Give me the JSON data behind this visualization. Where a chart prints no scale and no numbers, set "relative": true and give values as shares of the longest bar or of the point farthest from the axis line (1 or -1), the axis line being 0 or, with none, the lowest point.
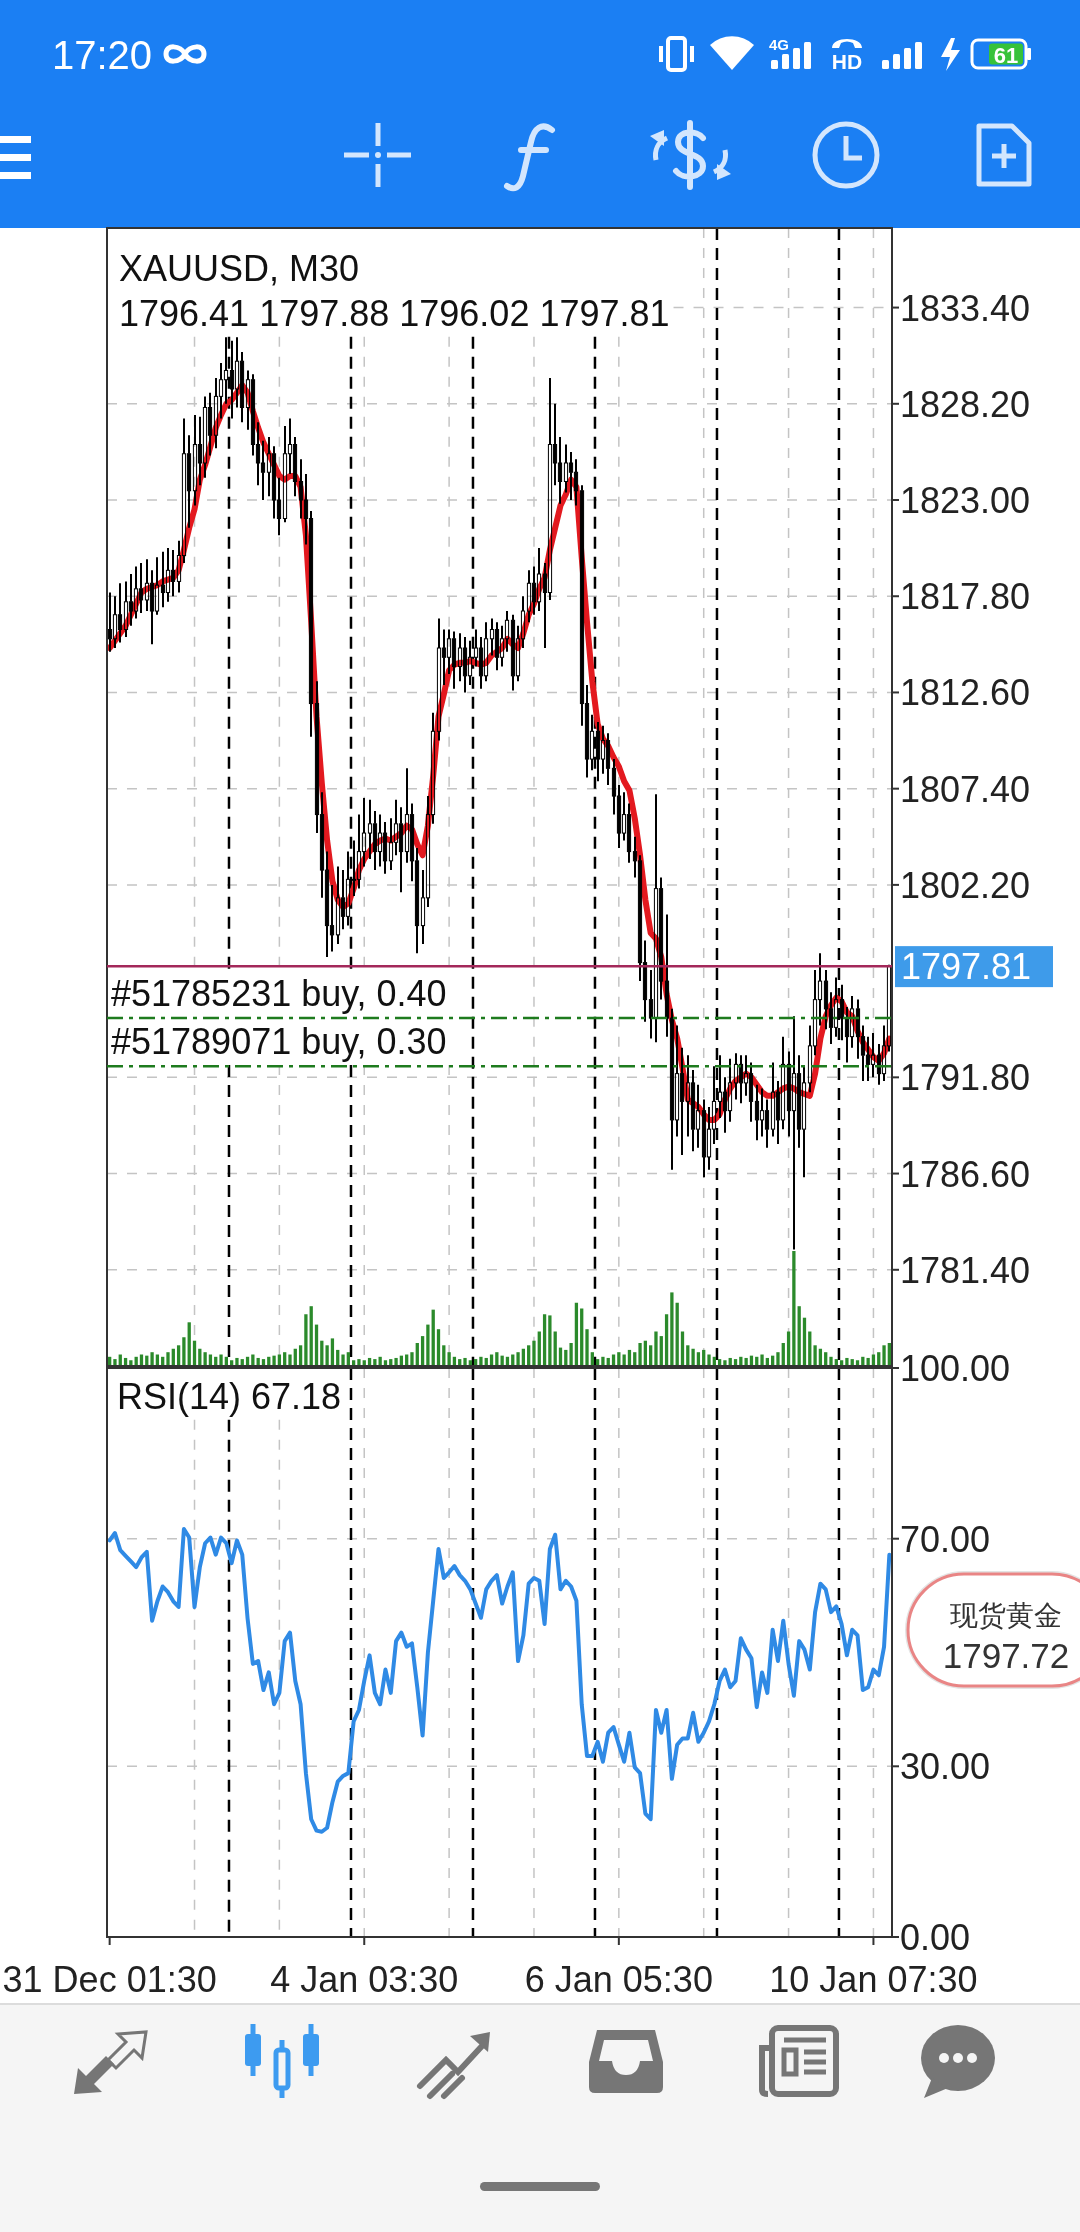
{
  "chart_data": [
    {
      "type": "candlestick",
      "title": "XAUUSD, M30",
      "subtitle": "1796.41 1797.88 1796.02 1797.81",
      "annotations": [
        "17:20",
        "4G",
        "HD",
        "61"
      ],
      "categories": [
        null,
        null,
        null,
        null,
        null,
        null,
        null,
        null,
        null,
        null,
        null,
        null,
        null,
        null,
        null,
        null,
        null,
        null,
        null,
        null,
        null,
        null,
        null,
        null,
        null,
        null,
        null,
        null,
        null,
        null,
        null,
        null,
        null,
        null,
        null,
        null,
        null,
        null,
        null,
        null,
        null,
        null,
        null,
        null,
        null,
        null,
        null,
        null,
        null,
        null,
        null,
        null,
        null,
        null,
        null,
        null,
        null,
        null,
        null,
        null,
        null,
        null,
        null,
        null,
        null,
        null,
        null,
        null,
        null,
        null,
        null,
        null,
        null,
        null,
        null,
        null,
        null,
        null,
        null,
        null,
        null,
        null,
        null,
        null,
        null,
        null,
        null,
        null,
        null,
        null,
        null,
        null,
        null,
        null,
        null,
        null,
        null,
        null,
        null,
        null,
        null,
        null,
        null,
        null,
        null,
        null,
        null,
        null,
        null,
        null,
        null,
        null,
        null,
        null,
        null,
        null,
        null,
        null,
        null,
        null,
        null,
        null,
        null,
        null,
        null,
        null,
        null,
        null,
        null,
        null,
        null,
        null,
        null,
        null,
        null,
        null,
        null,
        null,
        null,
        null,
        null,
        null,
        null,
        null,
        null,
        null,
        null,
        null
      ],
      "ohlc": [
        [
          1816.0,
          1818.0,
          1814.8,
          1815.5
        ],
        [
          1815.5,
          1817.8,
          1815.0,
          1816.8
        ],
        [
          1816.8,
          1818.5,
          1815.3,
          1816.0
        ],
        [
          1816.0,
          1818.6,
          1815.6,
          1817.5
        ],
        [
          1817.5,
          1819.0,
          1816.2,
          1817.0
        ],
        [
          1817.0,
          1819.4,
          1816.6,
          1818.2
        ],
        [
          1818.2,
          1819.6,
          1816.9,
          1817.6
        ],
        [
          1817.6,
          1819.8,
          1817.0,
          1818.5
        ],
        [
          1818.5,
          1819.2,
          1815.2,
          1817.0
        ],
        [
          1817.0,
          1819.9,
          1816.8,
          1818.4
        ],
        [
          1818.4,
          1820.2,
          1817.2,
          1818.0
        ],
        [
          1818.0,
          1820.4,
          1817.5,
          1819.2
        ],
        [
          1819.2,
          1820.3,
          1817.8,
          1818.6
        ],
        [
          1818.6,
          1820.8,
          1818.0,
          1820.0
        ],
        [
          1820.0,
          1827.4,
          1819.6,
          1825.5
        ],
        [
          1825.5,
          1826.5,
          1821.5,
          1823.5
        ],
        [
          1823.5,
          1827.6,
          1822.7,
          1826.0
        ],
        [
          1826.0,
          1827.5,
          1823.8,
          1825.0
        ],
        [
          1825.0,
          1828.6,
          1824.2,
          1828.0
        ],
        [
          1828.0,
          1828.8,
          1825.4,
          1826.5
        ],
        [
          1826.5,
          1829.6,
          1825.8,
          1828.6
        ],
        [
          1828.6,
          1830.4,
          1827.4,
          1829.5
        ],
        [
          1829.5,
          1831.8,
          1828.2,
          1830.0
        ],
        [
          1830.0,
          1831.6,
          1827.4,
          1829.0
        ],
        [
          1829.0,
          1831.8,
          1828.0,
          1830.5
        ],
        [
          1830.5,
          1831.0,
          1827.2,
          1828.0
        ],
        [
          1828.0,
          1830.0,
          1826.8,
          1829.5
        ],
        [
          1829.5,
          1829.8,
          1825.4,
          1826.0
        ],
        [
          1826.0,
          1827.2,
          1823.8,
          1825.0
        ],
        [
          1825.0,
          1826.2,
          1823.0,
          1824.5
        ],
        [
          1824.5,
          1826.4,
          1823.2,
          1825.5
        ],
        [
          1825.5,
          1825.9,
          1822.0,
          1823.0
        ],
        [
          1823.0,
          1824.2,
          1821.1,
          1822.0
        ],
        [
          1822.0,
          1827.0,
          1821.8,
          1825.5
        ],
        [
          1825.5,
          1827.4,
          1824.4,
          1826.0
        ],
        [
          1826.0,
          1826.4,
          1823.2,
          1824.0
        ],
        [
          1824.0,
          1825.2,
          1822.0,
          1823.0
        ],
        [
          1823.0,
          1824.4,
          1820.6,
          1822.0
        ],
        [
          1822.0,
          1822.4,
          1810.2,
          1812.0
        ],
        [
          1812.0,
          1813.2,
          1805.0,
          1806.0
        ],
        [
          1806.0,
          1807.2,
          1801.5,
          1803.0
        ],
        [
          1803.0,
          1804.0,
          1798.3,
          1800.0
        ],
        [
          1800.0,
          1802.2,
          1798.6,
          1799.5
        ],
        [
          1799.5,
          1803.2,
          1799.0,
          1801.5
        ],
        [
          1801.5,
          1803.0,
          1799.8,
          1800.5
        ],
        [
          1800.5,
          1804.0,
          1800.0,
          1802.5
        ],
        [
          1802.5,
          1804.6,
          1801.6,
          1802.5
        ],
        [
          1802.5,
          1806.0,
          1802.0,
          1804.0
        ],
        [
          1804.0,
          1806.9,
          1803.2,
          1805.0
        ],
        [
          1805.0,
          1806.8,
          1803.6,
          1805.5
        ],
        [
          1805.5,
          1806.2,
          1803.0,
          1804.0
        ],
        [
          1804.0,
          1806.0,
          1803.2,
          1805.0
        ],
        [
          1805.0,
          1805.6,
          1802.8,
          1803.5
        ],
        [
          1803.5,
          1805.8,
          1803.0,
          1804.5
        ],
        [
          1804.5,
          1806.8,
          1803.8,
          1805.5
        ],
        [
          1805.5,
          1806.4,
          1801.8,
          1804.0
        ],
        [
          1804.0,
          1808.5,
          1803.4,
          1806.0
        ],
        [
          1806.0,
          1806.6,
          1802.4,
          1803.5
        ],
        [
          1803.5,
          1804.2,
          1798.5,
          1800.0
        ],
        [
          1800.0,
          1803.0,
          1799.0,
          1801.5
        ],
        [
          1801.5,
          1807.0,
          1801.0,
          1806.0
        ],
        [
          1806.0,
          1811.5,
          1805.5,
          1810.5
        ],
        [
          1810.5,
          1816.6,
          1810.0,
          1815.0
        ],
        [
          1815.0,
          1816.0,
          1813.0,
          1814.5
        ],
        [
          1814.5,
          1816.0,
          1813.6,
          1815.5
        ],
        [
          1815.5,
          1815.9,
          1812.8,
          1814.0
        ],
        [
          1814.0,
          1815.8,
          1813.2,
          1815.0
        ],
        [
          1815.0,
          1815.6,
          1812.6,
          1813.5
        ],
        [
          1813.5,
          1815.4,
          1813.0,
          1814.5
        ],
        [
          1814.5,
          1816.0,
          1814.0,
          1815.0
        ],
        [
          1815.0,
          1815.6,
          1812.8,
          1813.5
        ],
        [
          1813.5,
          1816.4,
          1813.2,
          1815.5
        ],
        [
          1815.5,
          1816.6,
          1814.6,
          1816.0
        ],
        [
          1816.0,
          1816.4,
          1813.8,
          1814.5
        ],
        [
          1814.5,
          1816.2,
          1814.0,
          1815.5
        ],
        [
          1815.5,
          1817.0,
          1814.8,
          1816.5
        ],
        [
          1816.5,
          1816.8,
          1812.7,
          1813.5
        ],
        [
          1813.5,
          1816.2,
          1813.2,
          1815.5
        ],
        [
          1815.5,
          1817.8,
          1815.0,
          1817.0
        ],
        [
          1817.0,
          1819.2,
          1816.4,
          1818.5
        ],
        [
          1818.5,
          1819.4,
          1816.8,
          1817.5
        ],
        [
          1817.5,
          1820.4,
          1817.0,
          1819.0
        ],
        [
          1819.0,
          1819.6,
          1815.0,
          1818.0
        ],
        [
          1818.0,
          1829.6,
          1817.6,
          1826.0
        ],
        [
          1826.0,
          1828.2,
          1823.8,
          1825.0
        ],
        [
          1825.0,
          1826.4,
          1822.8,
          1824.0
        ],
        [
          1824.0,
          1826.0,
          1823.4,
          1825.0
        ],
        [
          1825.0,
          1825.6,
          1823.0,
          1824.5
        ],
        [
          1824.5,
          1825.2,
          1822.7,
          1823.5
        ],
        [
          1823.5,
          1823.8,
          1810.8,
          1812.0
        ],
        [
          1812.0,
          1813.0,
          1808.0,
          1809.0
        ],
        [
          1809.0,
          1811.4,
          1808.4,
          1810.5
        ],
        [
          1810.5,
          1811.0,
          1807.8,
          1809.0
        ],
        [
          1809.0,
          1810.8,
          1808.2,
          1810.0
        ],
        [
          1810.0,
          1810.4,
          1807.6,
          1808.5
        ],
        [
          1808.5,
          1809.0,
          1806.0,
          1807.0
        ],
        [
          1807.0,
          1807.6,
          1804.2,
          1805.0
        ],
        [
          1805.0,
          1807.2,
          1804.6,
          1806.0
        ],
        [
          1806.0,
          1806.6,
          1803.4,
          1804.0
        ],
        [
          1804.0,
          1804.8,
          1802.6,
          1803.5
        ],
        [
          1803.5,
          1803.8,
          1797.0,
          1798.0
        ],
        [
          1798.0,
          1799.2,
          1794.8,
          1796.0
        ],
        [
          1796.0,
          1797.6,
          1793.9,
          1795.0
        ],
        [
          1795.0,
          1807.1,
          1793.7,
          1802.0
        ],
        [
          1802.0,
          1802.6,
          1796.0,
          1797.0
        ],
        [
          1797.0,
          1800.6,
          1794.0,
          1795.0
        ],
        [
          1795.0,
          1795.5,
          1786.8,
          1789.5
        ],
        [
          1789.5,
          1794.6,
          1788.6,
          1792.0
        ],
        [
          1792.0,
          1793.4,
          1787.6,
          1790.5
        ],
        [
          1790.5,
          1793.0,
          1788.6,
          1791.5
        ],
        [
          1791.5,
          1792.2,
          1787.8,
          1789.0
        ],
        [
          1789.0,
          1791.4,
          1788.0,
          1790.0
        ],
        [
          1790.0,
          1790.6,
          1786.4,
          1787.5
        ],
        [
          1787.5,
          1790.2,
          1786.8,
          1789.0
        ],
        [
          1789.0,
          1792.4,
          1788.2,
          1790.5
        ],
        [
          1790.5,
          1793.0,
          1789.6,
          1791.0
        ],
        [
          1791.0,
          1791.8,
          1788.8,
          1790.0
        ],
        [
          1790.0,
          1792.8,
          1789.4,
          1791.5
        ],
        [
          1791.5,
          1793.1,
          1790.6,
          1792.5
        ],
        [
          1792.5,
          1793.0,
          1790.4,
          1791.5
        ],
        [
          1791.5,
          1793.0,
          1790.8,
          1792.0
        ],
        [
          1792.0,
          1792.6,
          1789.4,
          1790.5
        ],
        [
          1790.5,
          1791.4,
          1788.4,
          1789.5
        ],
        [
          1789.5,
          1791.2,
          1788.6,
          1790.0
        ],
        [
          1790.0,
          1790.6,
          1788.0,
          1789.0
        ],
        [
          1789.0,
          1792.6,
          1788.6,
          1791.0
        ],
        [
          1791.0,
          1791.6,
          1788.2,
          1789.5
        ],
        [
          1789.5,
          1794.0,
          1789.0,
          1792.5
        ],
        [
          1792.5,
          1793.2,
          1788.6,
          1790.0
        ],
        [
          1790.0,
          1795.1,
          1782.5,
          1792.0
        ],
        [
          1792.0,
          1793.0,
          1788.0,
          1789.0
        ],
        [
          1789.0,
          1792.4,
          1786.4,
          1791.5
        ],
        [
          1791.5,
          1794.6,
          1791.0,
          1793.5
        ],
        [
          1793.5,
          1797.6,
          1793.0,
          1796.0
        ],
        [
          1796.0,
          1798.5,
          1794.6,
          1797.0
        ],
        [
          1797.0,
          1797.6,
          1794.4,
          1795.5
        ],
        [
          1795.5,
          1796.4,
          1793.6,
          1794.5
        ],
        [
          1794.5,
          1797.2,
          1794.0,
          1796.0
        ],
        [
          1796.0,
          1796.8,
          1793.8,
          1795.0
        ],
        [
          1795.0,
          1795.6,
          1792.6,
          1794.0
        ],
        [
          1794.0,
          1796.2,
          1793.4,
          1795.5
        ],
        [
          1795.5,
          1796.0,
          1792.8,
          1794.0
        ],
        [
          1794.0,
          1794.6,
          1791.6,
          1793.0
        ],
        [
          1793.0,
          1794.0,
          1791.6,
          1792.5
        ],
        [
          1792.5,
          1794.2,
          1791.8,
          1793.0
        ],
        [
          1793.0,
          1793.6,
          1791.4,
          1792.0
        ],
        [
          1792.0,
          1794.6,
          1791.6,
          1793.5
        ],
        [
          1793.5,
          1797.88,
          1793.2,
          1797.81
        ]
      ],
      "color": "#000000",
      "series": [
        {
          "type": "line",
          "color": "#e3191f",
          "values": [
            1815.0,
            1815.4,
            1815.8,
            1816.2,
            1816.8,
            1817.4,
            1818.0,
            1818.2,
            1818.3,
            1818.4,
            1818.6,
            1818.7,
            1818.8,
            1819.2,
            1820.3,
            1821.5,
            1822.5,
            1824.1,
            1824.9,
            1825.9,
            1826.9,
            1827.6,
            1828.2,
            1828.4,
            1828.8,
            1829.2,
            1828.8,
            1827.8,
            1826.9,
            1826.1,
            1825.5,
            1824.9,
            1824.3,
            1824.1,
            1824.3,
            1824.3,
            1823.7,
            1821.1,
            1816.4,
            1811.3,
            1807.7,
            1804.6,
            1802.4,
            1801.4,
            1801.0,
            1801.2,
            1802.0,
            1803.0,
            1803.6,
            1804.0,
            1804.4,
            1804.6,
            1804.7,
            1804.6,
            1804.8,
            1805.0,
            1805.4,
            1805.2,
            1804.4,
            1803.8,
            1805.4,
            1808.1,
            1811.3,
            1812.5,
            1813.8,
            1814.1,
            1814.2,
            1814.2,
            1814.3,
            1814.2,
            1814.1,
            1814.2,
            1814.6,
            1814.8,
            1815.0,
            1815.5,
            1815.2,
            1815.0,
            1815.8,
            1816.8,
            1817.4,
            1818.2,
            1818.8,
            1820.3,
            1821.5,
            1822.7,
            1823.3,
            1824.1,
            1823.7,
            1819.9,
            1816.4,
            1813.2,
            1810.9,
            1810.1,
            1809.7,
            1809.1,
            1808.6,
            1807.8,
            1807.3,
            1805.8,
            1803.8,
            1801.4,
            1799.6,
            1799.3,
            1798.3,
            1796.3,
            1794.9,
            1793.9,
            1792.3,
            1790.6,
            1790.4,
            1790.2,
            1789.8,
            1789.5,
            1789.5,
            1789.8,
            1790.6,
            1791.2,
            1791.6,
            1791.8,
            1792.0,
            1791.8,
            1791.4,
            1791.0,
            1790.8,
            1790.8,
            1791.0,
            1791.2,
            1791.3,
            1791.2,
            1791.0,
            1790.9,
            1790.8,
            1792.0,
            1793.9,
            1795.1,
            1795.7,
            1796.1,
            1795.9,
            1795.3,
            1795.1,
            1794.3,
            1793.7,
            1793.3,
            1792.9,
            1792.7,
            1793.1,
            1793.9
          ]
        }
      ],
      "ylim": [
        1776.2,
        1837.7
      ],
      "yticks": [
        {
          "value": 1781.4,
          "label": "1781.40"
        },
        {
          "value": 1786.6,
          "label": "1786.60"
        },
        {
          "value": 1791.8,
          "label": "1791.80"
        },
        {
          "value": 1802.2,
          "label": "1802.20"
        },
        {
          "value": 1807.4,
          "label": "1807.40"
        },
        {
          "value": 1812.6,
          "label": "1812.60"
        },
        {
          "value": 1817.8,
          "label": "1817.80"
        },
        {
          "value": 1823.0,
          "label": "1823.00"
        },
        {
          "value": 1828.2,
          "label": "1828.20"
        },
        {
          "value": 1833.4,
          "label": "1833.40"
        }
      ],
      "grid": true,
      "ref_lines": [
        {
          "axis": "y",
          "value": 1797.81,
          "label": "1797.81",
          "color": "#a3285a"
        },
        {
          "axis": "y",
          "value": 1795.0,
          "label": "#51785231 buy, 0.40",
          "color": "#1e7b1e",
          "line_style": "dashdot"
        },
        {
          "axis": "y",
          "value": 1792.4,
          "label": "#51789071 buy, 0.30",
          "color": "#1e7b1e",
          "line_style": "dashdot"
        }
      ]
    },
    {
      "type": "bar",
      "relative": true,
      "categories": [
        null,
        null,
        null,
        null,
        null,
        null,
        null,
        null,
        null,
        null,
        null,
        null,
        null,
        null,
        null,
        null,
        null,
        null,
        null,
        null,
        null,
        null,
        null,
        null,
        null,
        null,
        null,
        null,
        null,
        null,
        null,
        null,
        null,
        null,
        null,
        null,
        null,
        null,
        null,
        null,
        null,
        null,
        null,
        null,
        null,
        null,
        null,
        null,
        null,
        null,
        null,
        null,
        null,
        null,
        null,
        null,
        null,
        null,
        null,
        null,
        null,
        null,
        null,
        null,
        null,
        null,
        null,
        null,
        null,
        null,
        null,
        null,
        null,
        null,
        null,
        null,
        null,
        null,
        null,
        null,
        null,
        null,
        null,
        null,
        null,
        null,
        null,
        null,
        null,
        null,
        null,
        null,
        null,
        null,
        null,
        null,
        null,
        null,
        null,
        null,
        null,
        null,
        null,
        null,
        null,
        null,
        null,
        null,
        null,
        null,
        null,
        null,
        null,
        null,
        null,
        null,
        null,
        null,
        null,
        null,
        null,
        null,
        null,
        null,
        null,
        null,
        null,
        null,
        null,
        null,
        null,
        null,
        null,
        null,
        null,
        null,
        null,
        null,
        null,
        null,
        null,
        null,
        null,
        null,
        null,
        null,
        null,
        null
      ],
      "values": [
        0.08,
        0.06,
        0.1,
        0.07,
        0.05,
        0.08,
        0.1,
        0.09,
        0.12,
        0.1,
        0.08,
        0.12,
        0.15,
        0.18,
        0.25,
        0.38,
        0.22,
        0.15,
        0.12,
        0.1,
        0.08,
        0.1,
        0.08,
        0.05,
        0.07,
        0.06,
        0.08,
        0.1,
        0.07,
        0.06,
        0.08,
        0.09,
        0.1,
        0.12,
        0.1,
        0.15,
        0.18,
        0.45,
        0.52,
        0.36,
        0.22,
        0.18,
        0.24,
        0.14,
        0.1,
        0.12,
        0.05,
        0.06,
        0.05,
        0.07,
        0.06,
        0.08,
        0.05,
        0.06,
        0.07,
        0.09,
        0.1,
        0.12,
        0.2,
        0.26,
        0.36,
        0.49,
        0.32,
        0.18,
        0.12,
        0.08,
        0.06,
        0.07,
        0.05,
        0.06,
        0.08,
        0.07,
        0.1,
        0.12,
        0.09,
        0.08,
        0.1,
        0.12,
        0.15,
        0.18,
        0.22,
        0.3,
        0.45,
        0.44,
        0.3,
        0.16,
        0.14,
        0.2,
        0.55,
        0.5,
        0.32,
        0.12,
        0.06,
        0.08,
        0.07,
        0.1,
        0.12,
        0.1,
        0.14,
        0.12,
        0.2,
        0.22,
        0.18,
        0.3,
        0.26,
        0.45,
        0.64,
        0.55,
        0.3,
        0.18,
        0.15,
        0.12,
        0.14,
        0.1,
        0.08,
        0.06,
        0.05,
        0.07,
        0.06,
        0.08,
        0.07,
        0.09,
        0.08,
        0.1,
        0.07,
        0.09,
        0.12,
        0.2,
        0.3,
        1,
        0.52,
        0.42,
        0.3,
        0.18,
        0.15,
        0.12,
        0.08,
        0.06,
        0.05,
        0.07,
        0.06,
        0.05,
        0.08,
        0.07,
        0.1,
        0.12,
        0.18,
        0.2
      ],
      "color": "#2b8a2b"
    },
    {
      "type": "line",
      "title": "RSI(14) 67.18",
      "annotations": [
        "现货黄金 1797.72"
      ],
      "categories": [
        "31 Dec 01:30",
        null,
        null,
        null,
        null,
        null,
        null,
        null,
        null,
        null,
        null,
        null,
        null,
        null,
        null,
        null,
        null,
        null,
        null,
        null,
        null,
        null,
        null,
        null,
        null,
        null,
        null,
        null,
        null,
        null,
        null,
        null,
        null,
        null,
        null,
        null,
        null,
        null,
        null,
        null,
        null,
        null,
        null,
        null,
        null,
        null,
        null,
        null,
        "4 Jan 03:30",
        null,
        null,
        null,
        null,
        null,
        null,
        null,
        null,
        null,
        null,
        null,
        null,
        null,
        null,
        null,
        null,
        null,
        null,
        null,
        null,
        null,
        null,
        null,
        null,
        null,
        null,
        null,
        null,
        null,
        null,
        null,
        null,
        null,
        null,
        null,
        null,
        null,
        null,
        null,
        null,
        null,
        null,
        null,
        null,
        null,
        null,
        null,
        "6 Jan 05:30",
        null,
        null,
        null,
        null,
        null,
        null,
        null,
        null,
        null,
        null,
        null,
        null,
        null,
        null,
        null,
        null,
        null,
        null,
        null,
        null,
        null,
        null,
        null,
        null,
        null,
        null,
        null,
        null,
        null,
        null,
        null,
        null,
        null,
        null,
        null,
        null,
        null,
        null,
        null,
        null,
        null,
        null,
        null,
        null,
        null,
        null,
        null,
        "10 Jan 07:30",
        null,
        null,
        null
      ],
      "values": [
        69.7,
        71,
        68,
        67,
        66,
        65,
        66.7,
        67.7,
        55.6,
        59,
        61.6,
        60.6,
        59,
        58,
        71.7,
        70.2,
        58,
        65,
        69.2,
        70.2,
        67.2,
        70.2,
        69.2,
        65.7,
        69.7,
        67.2,
        56,
        48,
        48.5,
        43.4,
        46.5,
        40.9,
        42.9,
        52,
        53.5,
        45,
        40.9,
        28.8,
        20.7,
        18.7,
        18.5,
        19.2,
        23.7,
        27.3,
        28.3,
        28.8,
        37.9,
        39.9,
        45,
        49.5,
        42.9,
        40.9,
        47,
        42.9,
        52,
        53.5,
        51,
        51.6,
        43.9,
        35.4,
        50,
        59.1,
        68.2,
        63.1,
        64.1,
        65.2,
        63.6,
        62.6,
        61.1,
        58.6,
        56.1,
        61.1,
        62.6,
        63.6,
        58.6,
        61.6,
        64.1,
        48.5,
        53,
        62.1,
        63.1,
        62.6,
        55,
        68.2,
        70.7,
        61.1,
        62.6,
        61.6,
        59.1,
        40.9,
        31.8,
        31.8,
        34.3,
        30.8,
        35.9,
        36.9,
        33.8,
        30.8,
        35.9,
        29.8,
        28.8,
        21.7,
        20.7,
        39.9,
        35.9,
        39.9,
        27.8,
        33.8,
        34.9,
        34.9,
        39.4,
        34.3,
        35.9,
        37.9,
        40.9,
        45,
        47,
        43.9,
        45,
        52.5,
        50.5,
        49,
        40.4,
        46.5,
        42.9,
        54,
        48.5,
        55.6,
        48,
        42.4,
        52,
        50.5,
        47,
        57.1,
        62.1,
        61.1,
        57.1,
        58.1,
        55,
        49.5,
        54,
        53,
        43.4,
        43.9,
        47,
        46,
        51,
        67.18
      ],
      "color": "#2f8ae5",
      "ylim": [
        0,
        100
      ],
      "yticks": [
        {
          "value": 0,
          "label": "0.00"
        },
        {
          "value": 30,
          "label": "30.00"
        },
        {
          "value": 70,
          "label": "70.00"
        },
        {
          "value": 100,
          "label": "100.00"
        }
      ],
      "grid": true
    }
  ]
}
